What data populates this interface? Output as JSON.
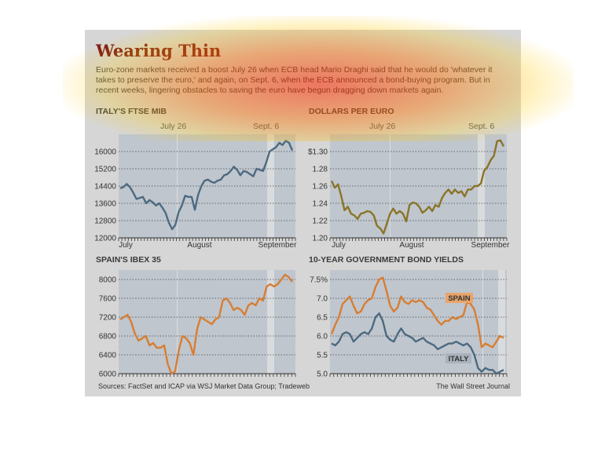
{
  "title": "Wearing Thin",
  "intro": "Euro-zone markets received a boost July 26 when ECB head Mario Draghi said that he would do 'whatever it takes to preserve the euro,' and again, on Sept. 6, when the ECB announced a bond-buying program. But in recent weeks, lingering obstacles to saving the euro have begun dragging down markets again.",
  "source": "Sources: FactSet and ICAP via WSJ Market Data Group; Tradeweb",
  "credit": "The Wall Street Journal",
  "colors": {
    "blue": "#4d6a80",
    "gold": "#8a7427",
    "orange": "#d77e33",
    "title": "#7a1515",
    "plot": "#bfc6ce"
  },
  "chart_data": [
    {
      "type": "line",
      "title": "ITALY'S FTSE MIB",
      "events": [
        "July 26",
        "Sept. 6"
      ],
      "xticks": [
        "July",
        "August",
        "September"
      ],
      "yticks": [
        "16000",
        "15200",
        "14400",
        "13600",
        "12800",
        "12000"
      ],
      "ylim": [
        12000,
        16800
      ],
      "grid": true,
      "series": [
        {
          "values": [
            14300,
            14350,
            14500,
            14350,
            14100,
            13800,
            13850,
            13900,
            13600,
            13750,
            13650,
            13500,
            13600,
            13400,
            13150,
            12700,
            12400,
            12600,
            13200,
            13500,
            13950,
            13900,
            13900,
            13300,
            14000,
            14400,
            14650,
            14700,
            14600,
            14550,
            14650,
            14700,
            14900,
            14950,
            15100,
            15300,
            15150,
            14900,
            15100,
            15050,
            14950,
            14850,
            15200,
            15150,
            15100,
            15500,
            16000,
            16100,
            16200,
            16400,
            16300,
            16500,
            16400,
            16050
          ]
        }
      ]
    },
    {
      "type": "line",
      "title": "DOLLARS PER EURO",
      "events": [
        "July 26",
        "Sept. 6"
      ],
      "xticks": [
        "July",
        "August",
        "September"
      ],
      "yticks": [
        "$1.30",
        "1.28",
        "1.26",
        "1.24",
        "1.22",
        "1.20"
      ],
      "ylim": [
        1.2,
        1.32
      ],
      "grid": true,
      "series": [
        {
          "values": [
            1.266,
            1.258,
            1.262,
            1.248,
            1.232,
            1.236,
            1.228,
            1.226,
            1.222,
            1.228,
            1.229,
            1.231,
            1.23,
            1.226,
            1.214,
            1.211,
            1.205,
            1.216,
            1.228,
            1.234,
            1.228,
            1.231,
            1.228,
            1.219,
            1.238,
            1.241,
            1.24,
            1.236,
            1.229,
            1.232,
            1.236,
            1.231,
            1.238,
            1.236,
            1.246,
            1.252,
            1.256,
            1.251,
            1.256,
            1.252,
            1.254,
            1.248,
            1.256,
            1.256,
            1.26,
            1.26,
            1.263,
            1.278,
            1.282,
            1.29,
            1.295,
            1.312,
            1.313,
            1.306
          ]
        }
      ]
    },
    {
      "type": "line",
      "title": "SPAIN'S IBEX 35",
      "events": [],
      "xticks": [],
      "yticks": [
        "8000",
        "7600",
        "7200",
        "6800",
        "6400",
        "6000"
      ],
      "ylim": [
        6000,
        8200
      ],
      "grid": true,
      "series": [
        {
          "values": [
            7150,
            7200,
            7250,
            7100,
            6850,
            6700,
            6750,
            6800,
            6600,
            6650,
            6550,
            6550,
            6600,
            6200,
            6000,
            6050,
            6500,
            6800,
            6750,
            6650,
            6400,
            6950,
            7200,
            7150,
            7100,
            7050,
            7150,
            7200,
            7550,
            7600,
            7500,
            7350,
            7400,
            7350,
            7250,
            7450,
            7500,
            7450,
            7600,
            7550,
            7850,
            7900,
            7850,
            7900,
            8000,
            8100,
            8050,
            7950
          ]
        }
      ]
    },
    {
      "type": "line",
      "title": "10-YEAR GOVERNMENT BOND YIELDS",
      "events": [],
      "xticks": [],
      "yticks": [
        "7.5%",
        "7.0",
        "6.5",
        "6.0",
        "5.5",
        "5.0"
      ],
      "ylim": [
        5.0,
        7.75
      ],
      "grid": true,
      "series": [
        {
          "name": "SPAIN",
          "values": [
            6.05,
            6.3,
            6.5,
            6.85,
            6.95,
            7.05,
            6.8,
            6.6,
            6.65,
            6.85,
            6.95,
            7.0,
            7.3,
            7.5,
            7.55,
            7.2,
            6.8,
            6.65,
            6.75,
            7.05,
            6.9,
            6.85,
            6.95,
            6.9,
            6.95,
            6.9,
            6.75,
            6.7,
            6.55,
            6.4,
            6.3,
            6.4,
            6.4,
            6.5,
            6.45,
            6.5,
            6.55,
            6.9,
            6.85,
            6.7,
            6.3,
            5.7,
            5.8,
            5.75,
            5.7,
            5.85,
            6.0,
            5.95
          ]
        },
        {
          "name": "ITALY",
          "values": [
            5.8,
            5.75,
            5.85,
            6.05,
            6.1,
            6.05,
            5.85,
            5.95,
            6.05,
            6.1,
            6.05,
            6.2,
            6.5,
            6.6,
            6.4,
            6.0,
            5.9,
            5.85,
            6.05,
            6.2,
            6.05,
            6.0,
            5.95,
            5.85,
            5.9,
            5.95,
            5.85,
            5.8,
            5.75,
            5.65,
            5.7,
            5.75,
            5.8,
            5.8,
            5.85,
            5.8,
            5.75,
            5.8,
            5.7,
            5.5,
            5.15,
            5.05,
            5.15,
            5.1,
            5.1,
            5.0,
            5.05,
            5.1
          ]
        }
      ]
    }
  ]
}
